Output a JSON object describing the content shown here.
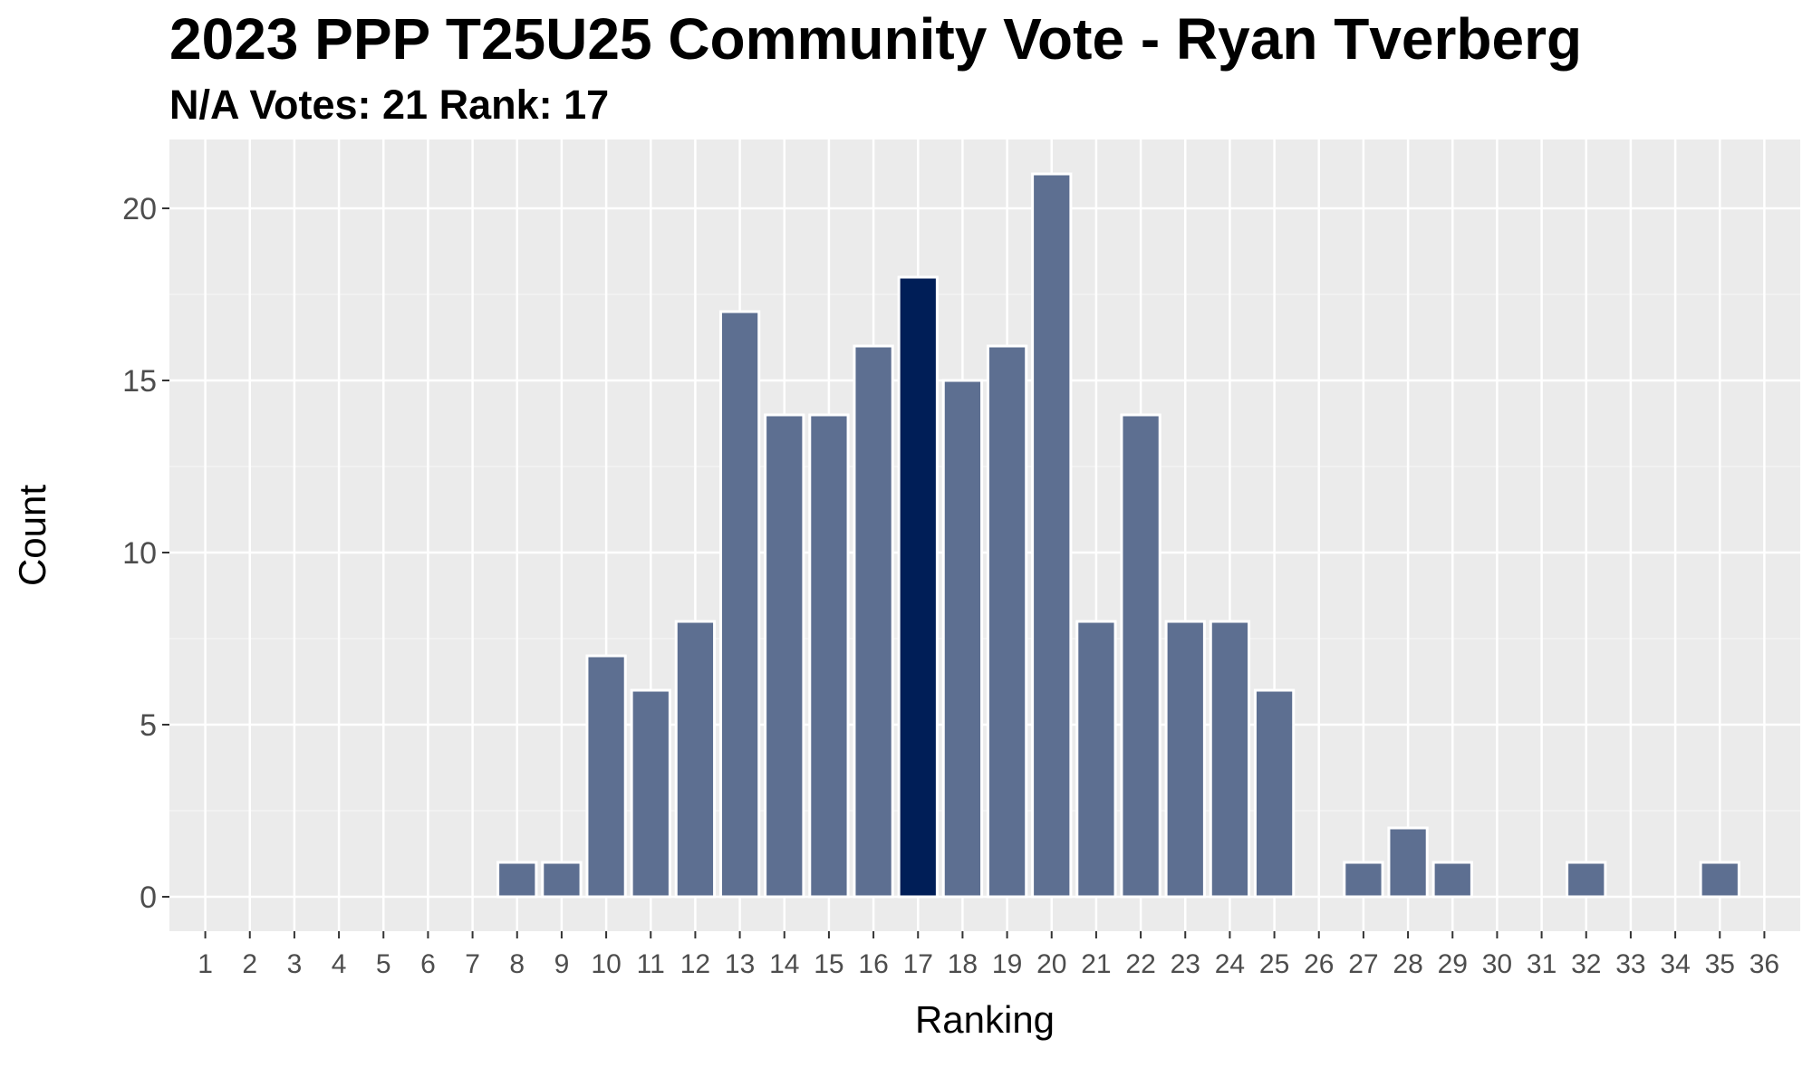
{
  "chart_data": {
    "type": "bar",
    "title": "2023 PPP T25U25 Community Vote - Ryan Tverberg",
    "subtitle": "N/A Votes: 21  Rank: 17",
    "xlabel": "Ranking",
    "ylabel": "Count",
    "categories": [
      "1",
      "2",
      "3",
      "4",
      "5",
      "6",
      "7",
      "8",
      "9",
      "10",
      "11",
      "12",
      "13",
      "14",
      "15",
      "16",
      "17",
      "18",
      "19",
      "20",
      "21",
      "22",
      "23",
      "24",
      "25",
      "26",
      "27",
      "28",
      "29",
      "30",
      "31",
      "32",
      "33",
      "34",
      "35",
      "36"
    ],
    "values": [
      0,
      0,
      0,
      0,
      0,
      0,
      0,
      1,
      1,
      7,
      6,
      8,
      17,
      14,
      14,
      16,
      18,
      15,
      16,
      21,
      8,
      14,
      8,
      8,
      6,
      0,
      1,
      2,
      1,
      0,
      0,
      1,
      0,
      0,
      1,
      0
    ],
    "highlight_category": "17",
    "ylim": [
      -1,
      22
    ],
    "yticks": [
      0,
      5,
      10,
      15,
      20
    ],
    "grid": true,
    "legend": "none",
    "colors": {
      "bar": "#5d6f91",
      "highlight": "#001e57",
      "panel": "#ebebeb",
      "grid_major": "#ffffff",
      "grid_minor": "#f3f3f3"
    }
  }
}
